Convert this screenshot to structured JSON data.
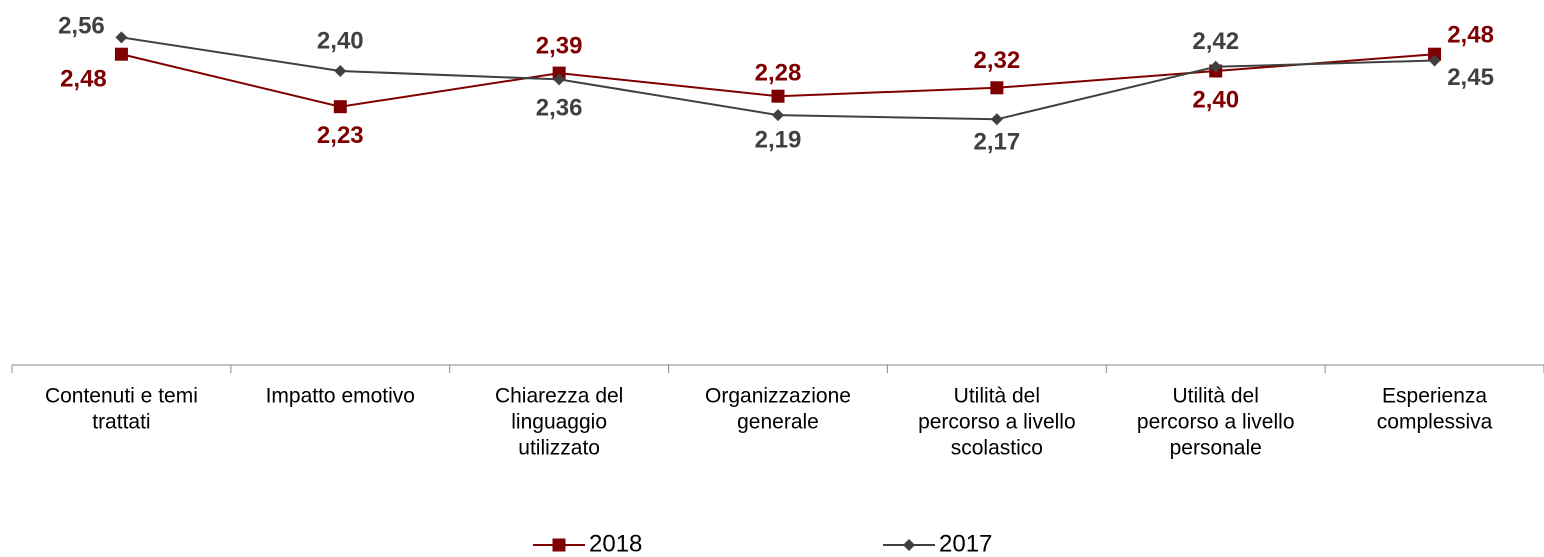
{
  "chart_data": {
    "type": "line",
    "categories": [
      [
        "Contenuti e temi",
        "trattati"
      ],
      [
        "Impatto emotivo"
      ],
      [
        "Chiarezza del",
        "linguaggio",
        "utilizzato"
      ],
      [
        "Organizzazione",
        "generale"
      ],
      [
        "Utilità del",
        "percorso a livello",
        "scolastico"
      ],
      [
        "Utilità del",
        "percorso a livello",
        "personale"
      ],
      [
        "Esperienza",
        "complessiva"
      ]
    ],
    "series": [
      {
        "name": "2018",
        "color": "#7f0000",
        "marker": "square",
        "values": [
          2.48,
          2.23,
          2.39,
          2.28,
          2.32,
          2.4,
          2.48
        ],
        "value_labels": [
          "2,48",
          "2,23",
          "2,39",
          "2,28",
          "2,32",
          "2,40",
          "2,48"
        ]
      },
      {
        "name": "2017",
        "color": "#404040",
        "marker": "diamond",
        "values": [
          2.56,
          2.4,
          2.36,
          2.19,
          2.17,
          2.42,
          2.45
        ],
        "value_labels": [
          "2,56",
          "2,40",
          "2,36",
          "2,19",
          "2,17",
          "2,42",
          "2,45"
        ]
      }
    ],
    "ylim": [
      1,
      2.6
    ],
    "legend": "bottom"
  }
}
